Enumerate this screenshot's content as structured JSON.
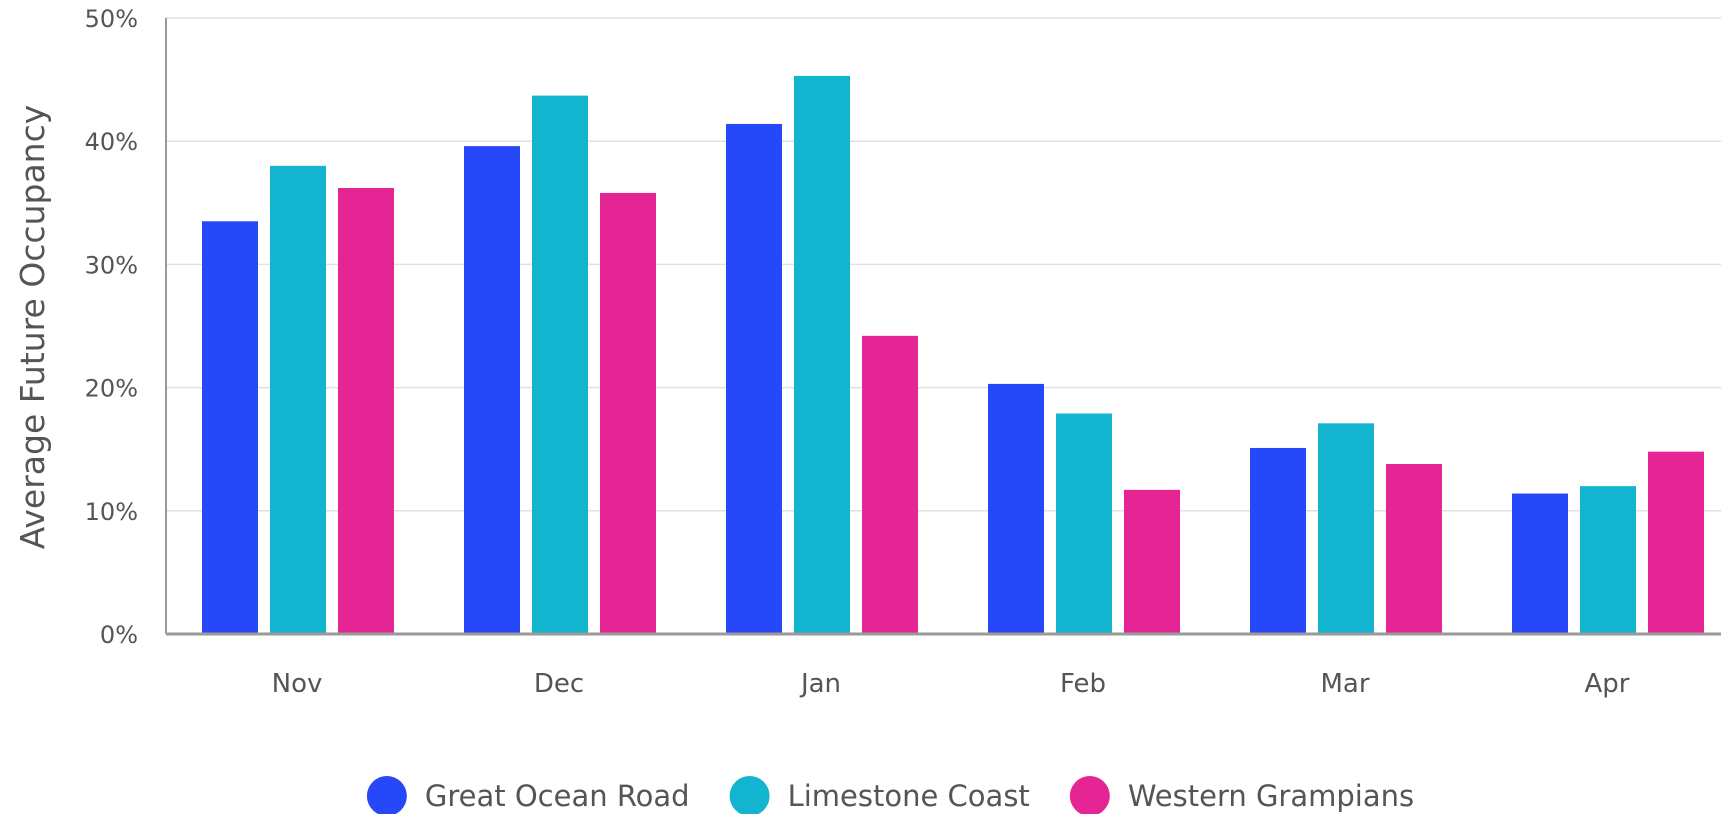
{
  "chart_data": {
    "type": "bar",
    "title": "",
    "xlabel": "",
    "ylabel": "Average Future Occupancy",
    "categories": [
      "Nov",
      "Dec",
      "Jan",
      "Feb",
      "Mar",
      "Apr"
    ],
    "y_ticks": [
      "0%",
      "10%",
      "20%",
      "30%",
      "40%",
      "50%"
    ],
    "ylim": [
      0,
      50
    ],
    "grid": true,
    "legend_position": "bottom-center",
    "series": [
      {
        "name": "Great Ocean Road",
        "color": "#2748f8",
        "values": [
          33.5,
          39.6,
          41.4,
          20.3,
          15.1,
          11.4
        ]
      },
      {
        "name": "Limestone Coast",
        "color": "#12b4cf",
        "values": [
          38.0,
          43.7,
          45.3,
          17.9,
          17.1,
          12.0
        ]
      },
      {
        "name": "Western Grampians",
        "color": "#e62594",
        "values": [
          36.2,
          35.8,
          24.2,
          11.7,
          13.8,
          14.8
        ]
      }
    ]
  }
}
